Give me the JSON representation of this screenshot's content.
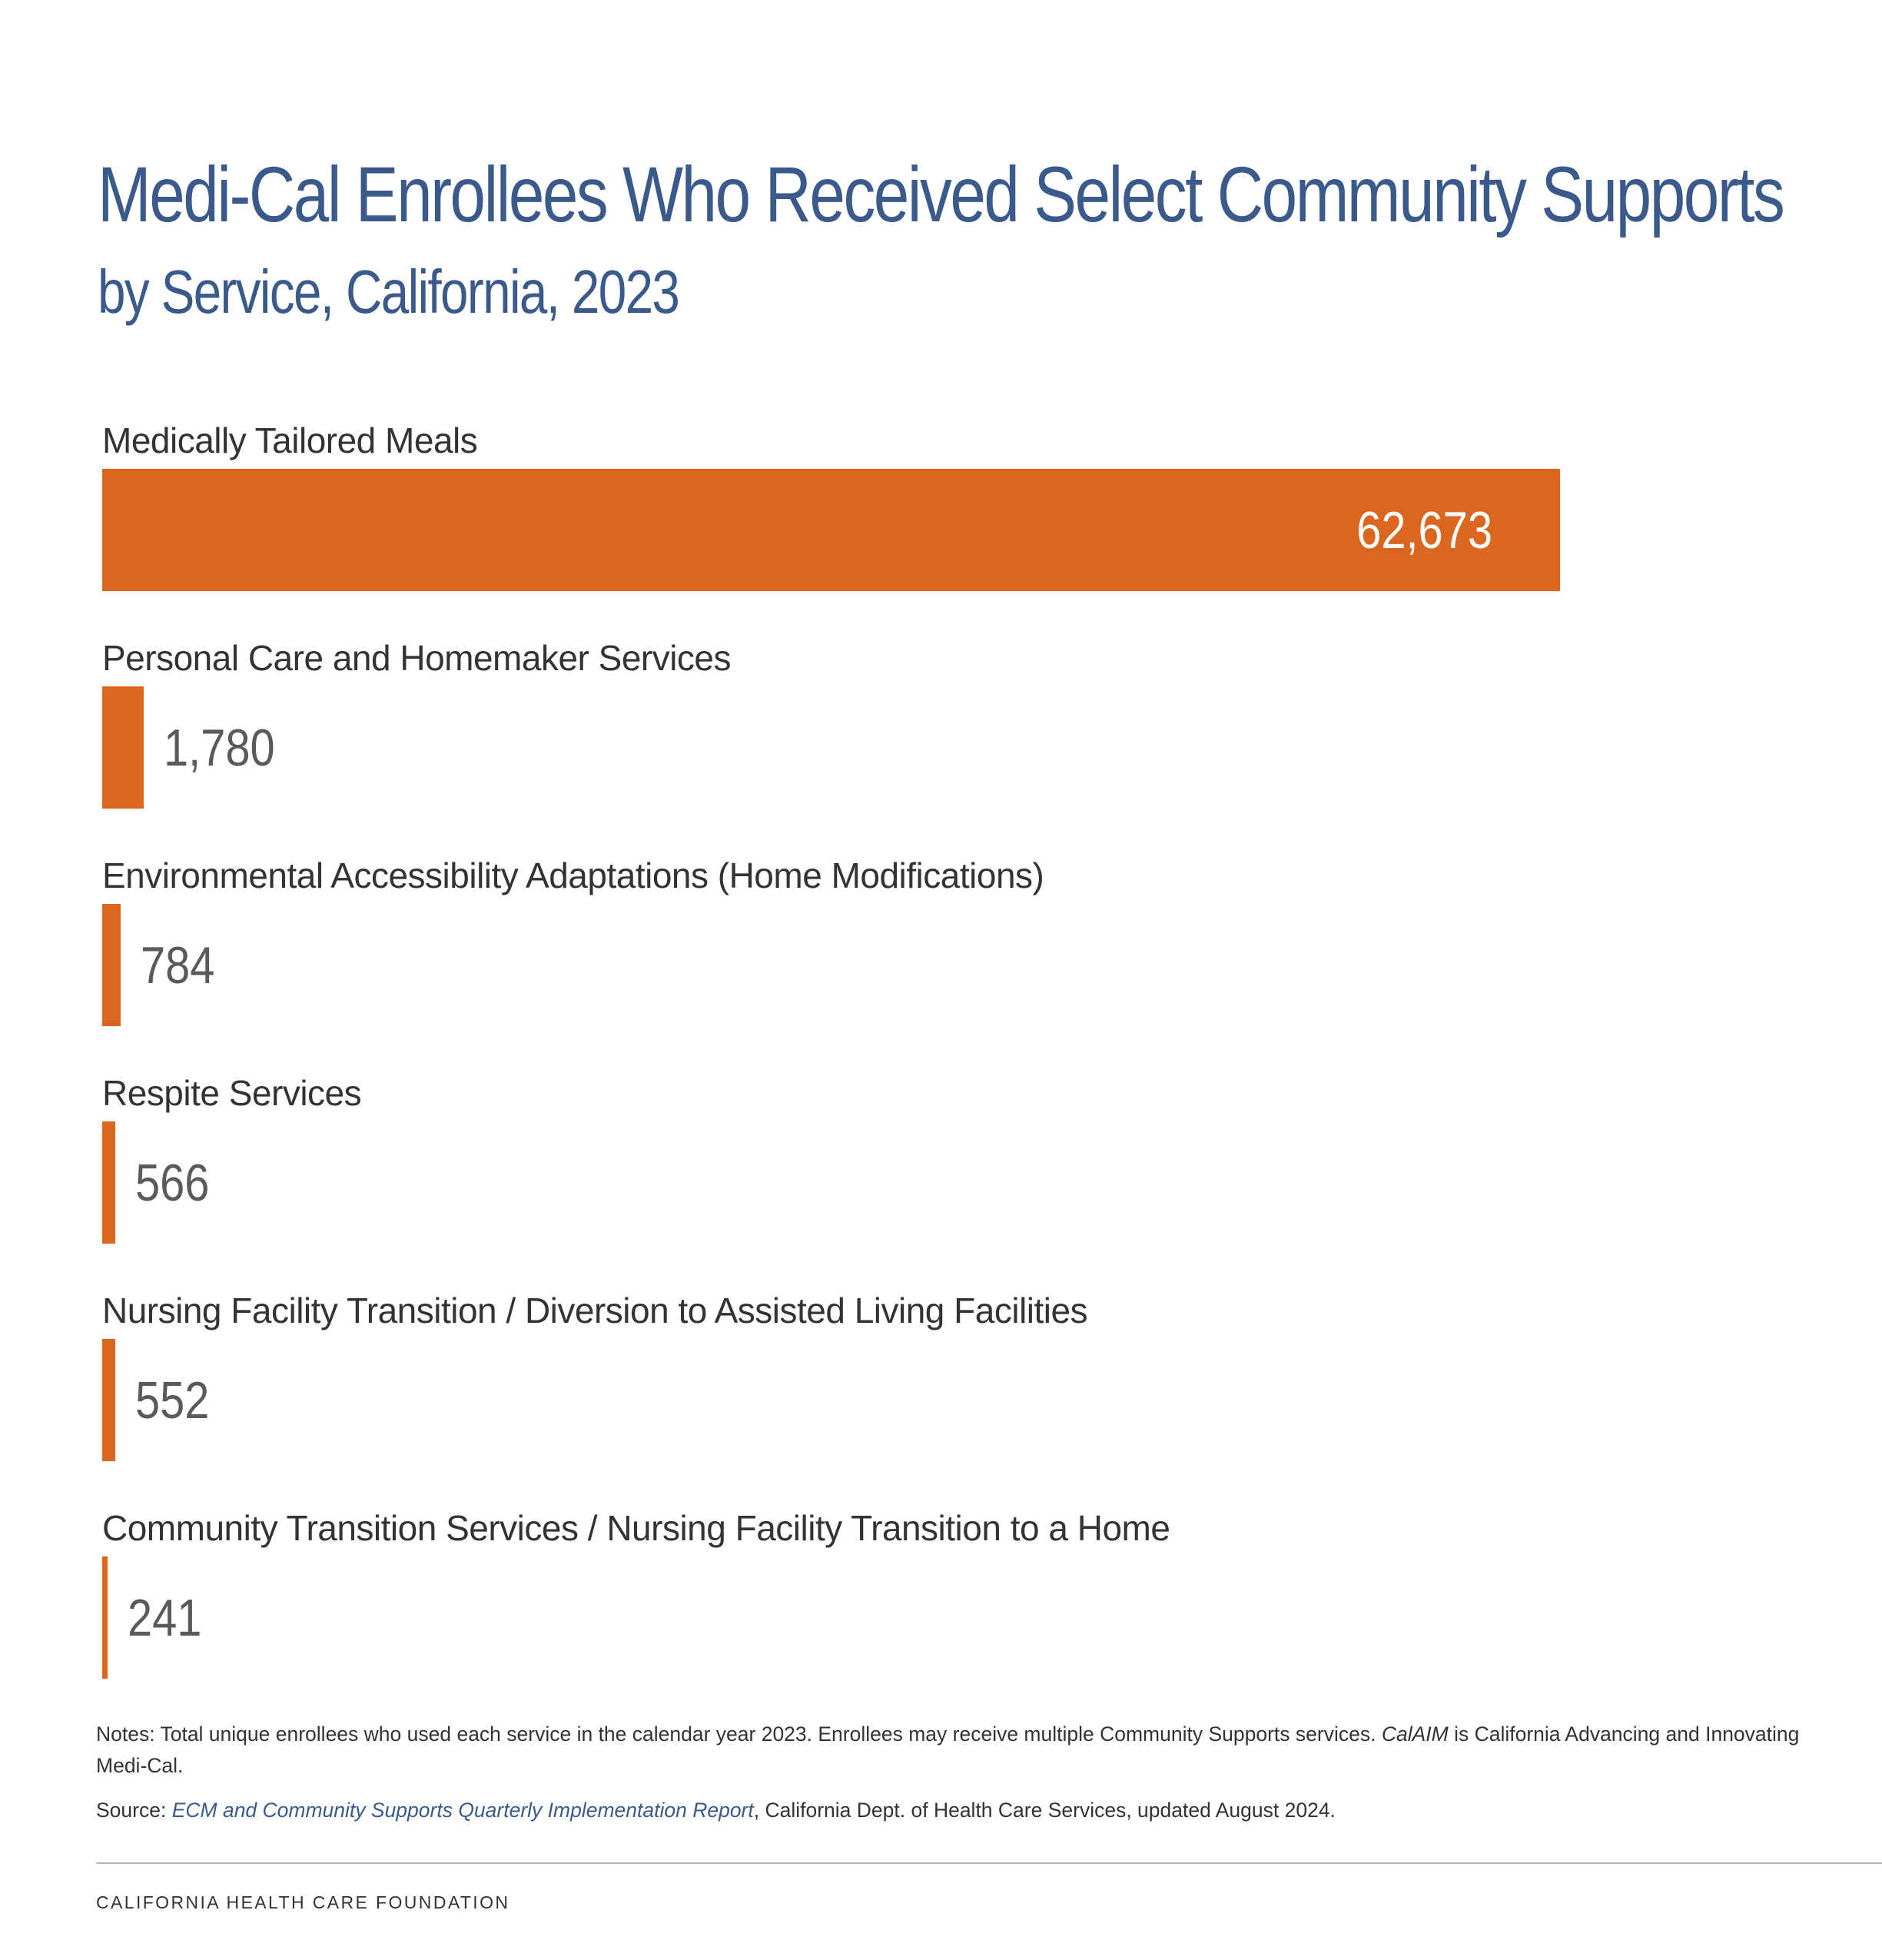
{
  "title": "Medi-Cal Enrollees Who Received Select Community Supports",
  "subtitle": "by Service, California, 2023",
  "colors": {
    "bar": "#db661d",
    "title": "#3a5a8c",
    "value_outside": "#5a5a5a",
    "value_inside": "#ffffff"
  },
  "chart_data": {
    "type": "bar",
    "orientation": "horizontal",
    "categories": [
      "Medically Tailored Meals",
      "Personal Care and Homemaker Services",
      "Environmental Accessibility Adaptations (Home Modifications)",
      "Respite Services",
      "Nursing Facility Transition / Diversion to Assisted Living Facilities",
      "Community Transition Services / Nursing Facility Transition to a Home"
    ],
    "values": [
      62673,
      1780,
      784,
      566,
      552,
      241
    ],
    "value_labels": [
      "62,673",
      "1,780",
      "784",
      "566",
      "552",
      "241"
    ],
    "title": "Medi-Cal Enrollees Who Received Select Community Supports",
    "subtitle": "by Service, California, 2023",
    "xlabel": "",
    "ylabel": "",
    "xlim": [
      0,
      62673
    ],
    "grid": false,
    "legend": "none"
  },
  "notes": {
    "prefix": "Notes: Total unique enrollees who used each service in the calendar year 2023. Enrollees may receive multiple Community Supports services. ",
    "italic_term": "CalAIM",
    "suffix": " is California Advancing and Innovating Medi-Cal."
  },
  "source": {
    "prefix": "Source: ",
    "link_text": "ECM and Community Supports Quarterly Implementation Report",
    "suffix": ", California Dept. of Health Care Services, updated August 2024."
  },
  "footer": "CALIFORNIA HEALTH CARE FOUNDATION"
}
